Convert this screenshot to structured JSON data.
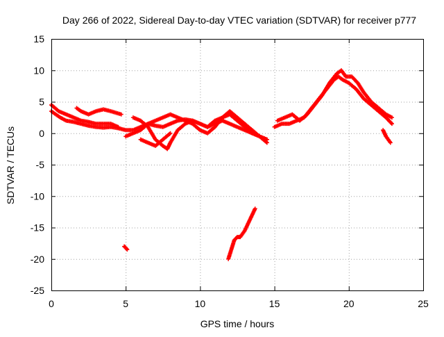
{
  "chart_data": {
    "type": "scatter",
    "title": "Day 266 of 2022, Sidereal Day-to-day VTEC variation (SDTVAR) for receiver p777",
    "xlabel": "GPS time / hours",
    "ylabel": "SDTVAR / TECUs",
    "xlim": [
      0,
      25
    ],
    "ylim": [
      -25,
      15
    ],
    "xticks": [
      0,
      5,
      10,
      15,
      20,
      25
    ],
    "yticks": [
      -25,
      -20,
      -15,
      -10,
      -5,
      0,
      5,
      10,
      15
    ],
    "grid": true,
    "marker": "+",
    "series": [
      {
        "name": "SDTVAR",
        "color": "#ff0000",
        "tracks": [
          {
            "x": [
              0.0,
              0.3,
              0.6,
              1.0,
              1.5,
              2.0,
              2.5,
              3.0,
              3.5,
              4.0,
              4.5,
              5.0,
              5.5,
              6.0,
              6.5,
              7.0,
              7.5,
              8.0,
              8.5,
              9.0,
              9.5,
              10.0,
              10.5,
              11.0,
              11.5,
              12.0,
              12.5,
              13.0,
              13.5,
              14.0,
              14.5
            ],
            "y": [
              3.5,
              3.0,
              2.5,
              2.0,
              1.8,
              1.5,
              1.2,
              1.0,
              0.9,
              1.0,
              0.8,
              0.5,
              0.5,
              1.0,
              1.5,
              1.2,
              1.0,
              1.5,
              2.0,
              2.2,
              2.0,
              1.5,
              1.0,
              1.5,
              2.0,
              1.5,
              1.0,
              0.5,
              0.0,
              -0.5,
              -1.0
            ]
          },
          {
            "x": [
              0.0,
              0.5,
              1.0,
              1.5,
              2.0,
              2.5,
              3.0,
              3.5,
              4.0,
              4.5
            ],
            "y": [
              4.5,
              3.5,
              3.0,
              2.5,
              2.0,
              1.8,
              1.5,
              1.5,
              1.5,
              1.0
            ]
          },
          {
            "x": [
              1.7,
              2.0,
              2.5,
              3.0,
              3.5,
              4.0,
              4.7
            ],
            "y": [
              4.0,
              3.5,
              3.0,
              3.5,
              3.8,
              3.5,
              3.0
            ]
          },
          {
            "x": [
              5.5,
              6.0,
              6.5,
              7.0,
              7.5,
              7.8,
              8.0,
              8.5,
              9.0,
              9.5,
              10.0,
              10.5,
              11.0,
              11.5,
              12.0,
              12.5,
              13.0,
              13.5,
              14.0,
              14.5
            ],
            "y": [
              2.5,
              2.0,
              1.0,
              -1.0,
              -2.0,
              -2.5,
              -1.5,
              0.5,
              1.5,
              2.0,
              1.5,
              1.0,
              2.0,
              2.5,
              3.5,
              2.5,
              1.5,
              0.5,
              -0.5,
              -1.0
            ]
          },
          {
            "x": [
              5.0,
              5.5,
              6.0,
              6.5,
              7.0,
              7.5,
              8.0,
              8.5,
              9.0,
              9.5,
              10.0,
              10.5,
              11.0,
              11.5,
              12.0,
              12.5,
              13.0,
              13.5,
              14.0,
              14.5
            ],
            "y": [
              -0.5,
              0.0,
              0.5,
              1.5,
              2.0,
              2.5,
              3.0,
              2.5,
              2.0,
              1.5,
              0.5,
              0.0,
              1.0,
              2.5,
              3.0,
              2.0,
              1.0,
              0.0,
              -0.5,
              -1.5
            ]
          },
          {
            "x": [
              6.0,
              6.5,
              7.0,
              7.5,
              8.0
            ],
            "y": [
              -1.0,
              -1.5,
              -2.0,
              -1.0,
              0.0
            ]
          },
          {
            "x": [
              15.0,
              15.5,
              16.0,
              16.5,
              17.0,
              17.5,
              18.0,
              18.5,
              19.0,
              19.3,
              19.6,
              20.0,
              20.5,
              21.0,
              21.5,
              22.0,
              22.5,
              22.9
            ],
            "y": [
              1.0,
              1.5,
              1.5,
              2.0,
              2.5,
              4.0,
              5.5,
              7.0,
              8.5,
              9.0,
              8.5,
              8.0,
              7.0,
              5.5,
              4.5,
              3.5,
              2.5,
              1.5
            ]
          },
          {
            "x": [
              15.2,
              15.7,
              16.2,
              16.7,
              17.2,
              17.7,
              18.2,
              18.7,
              19.2,
              19.5,
              19.8,
              20.2,
              20.6,
              21.0,
              21.5,
              22.0,
              22.5,
              22.9
            ],
            "y": [
              2.0,
              2.5,
              3.0,
              2.0,
              3.0,
              4.5,
              6.0,
              8.0,
              9.5,
              10.0,
              9.0,
              9.0,
              8.0,
              6.5,
              5.0,
              4.0,
              3.0,
              2.5
            ]
          },
          {
            "x": [
              22.3,
              22.5,
              22.8
            ],
            "y": [
              0.5,
              -0.5,
              -1.5
            ]
          },
          {
            "x": [
              4.9,
              5.0,
              5.1
            ],
            "y": [
              -18.0,
              -18.2,
              -18.5
            ]
          },
          {
            "x": [
              11.9,
              12.1,
              12.3,
              12.5,
              12.7,
              13.0,
              13.3,
              13.6,
              13.7
            ],
            "y": [
              -20.0,
              -18.5,
              -17.0,
              -16.5,
              -16.5,
              -15.5,
              -14.0,
              -12.5,
              -12.0
            ]
          }
        ]
      }
    ]
  }
}
